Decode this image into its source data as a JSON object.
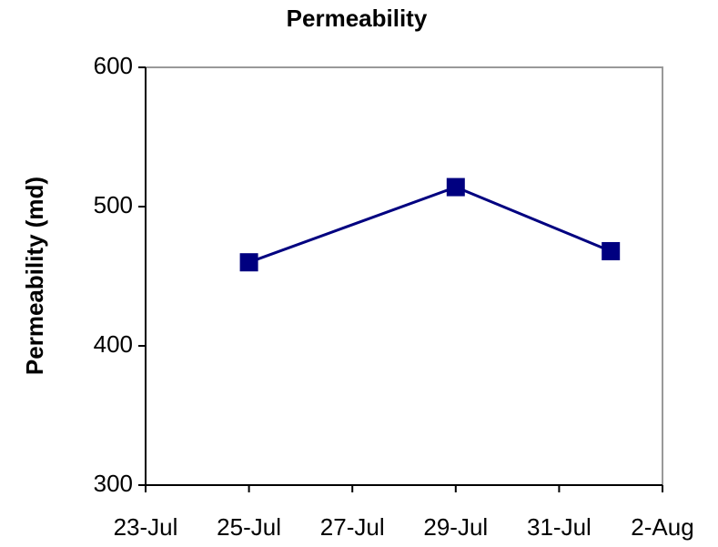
{
  "chart_data": {
    "type": "line",
    "title": "Permeability",
    "y_label": "Permeability (md)",
    "x": [
      "25-Jul",
      "29-Jul",
      "1-Aug"
    ],
    "series": [
      {
        "name": "Permeability",
        "color": "#000080",
        "values": [
          460,
          514,
          468
        ]
      }
    ],
    "xlim": [
      "23-Jul",
      "2-Aug"
    ],
    "xticks": [
      "23-Jul",
      "25-Jul",
      "27-Jul",
      "29-Jul",
      "31-Jul",
      "2-Aug"
    ],
    "ylim": [
      300,
      600
    ],
    "yticks": [
      300,
      400,
      500,
      600
    ],
    "grid": false
  }
}
